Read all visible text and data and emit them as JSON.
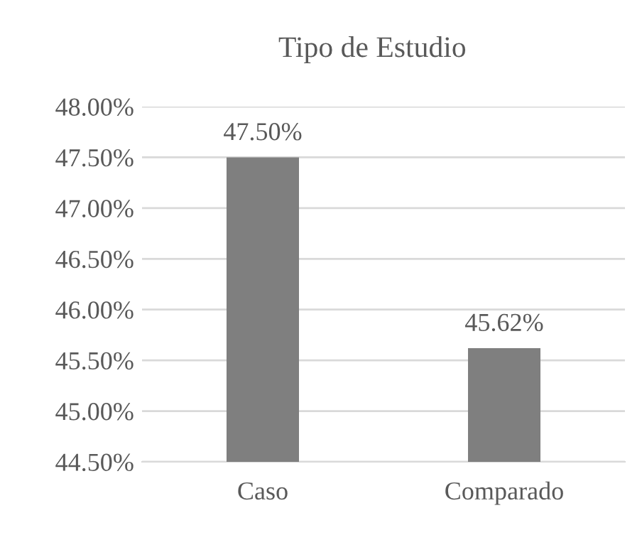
{
  "chart_data": {
    "type": "bar",
    "title": "Tipo de Estudio",
    "categories": [
      "Caso",
      "Comparado"
    ],
    "values": [
      47.5,
      45.62
    ],
    "value_labels": [
      "47.50%",
      "45.62%"
    ],
    "color": "#7f7f7f",
    "ylim": [
      44.5,
      48.0
    ],
    "yticks": [
      {
        "value": 44.5,
        "label": "44.50%"
      },
      {
        "value": 45.0,
        "label": "45.00%"
      },
      {
        "value": 45.5,
        "label": "45.50%"
      },
      {
        "value": 46.0,
        "label": "46.00%"
      },
      {
        "value": 46.5,
        "label": "46.50%"
      },
      {
        "value": 47.0,
        "label": "47.00%"
      },
      {
        "value": 47.5,
        "label": "47.50%"
      },
      {
        "value": 48.0,
        "label": "48.00%"
      }
    ],
    "grid": "y",
    "legend": false
  }
}
